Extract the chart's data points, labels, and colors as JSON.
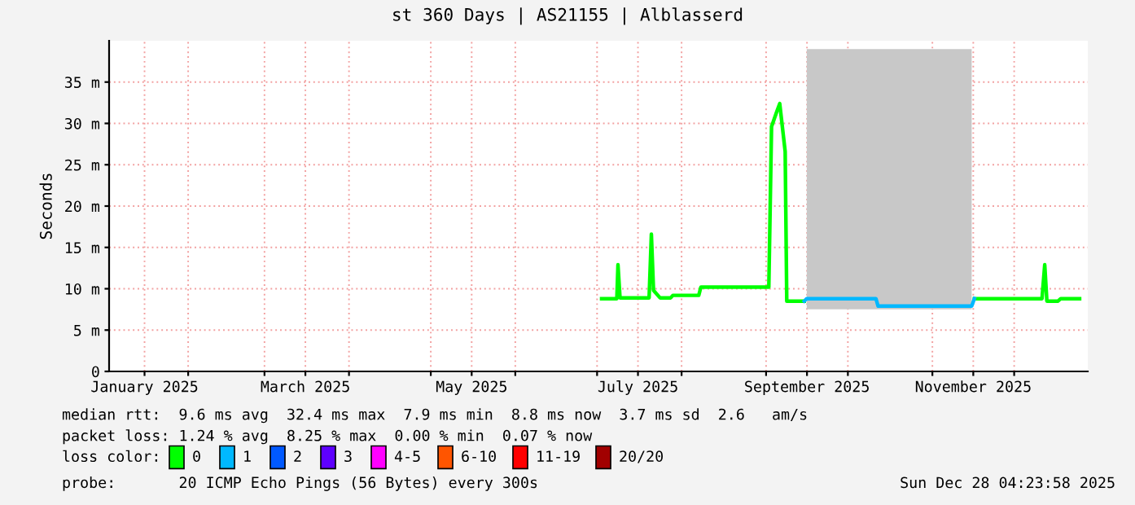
{
  "chart_data": {
    "type": "line",
    "title": "st 360 Days | AS21155 | Alblasserd",
    "ylabel": "Seconds",
    "xlim": [
      "2025-01-03",
      "2025-12-28"
    ],
    "xticks": [
      {
        "value": "2025-02-01",
        "label": null
      },
      {
        "value": "2025-03-01",
        "label": null
      },
      {
        "value": "2025-04-01",
        "label": null
      },
      {
        "value": "2025-05-01",
        "label": null
      },
      {
        "value": "2025-06-01",
        "label": null
      },
      {
        "value": "2025-07-01",
        "label": null
      },
      {
        "value": "2025-08-01",
        "label": null
      },
      {
        "value": "2025-09-01",
        "label": null
      },
      {
        "value": "2025-10-01",
        "label": null
      },
      {
        "value": "2025-11-01",
        "label": null
      },
      {
        "value": "2025-12-01",
        "label": null
      },
      {
        "value": "2025-01-16",
        "label": "January 2025"
      },
      {
        "value": "2025-03-16",
        "label": "March 2025"
      },
      {
        "value": "2025-05-16",
        "label": "May 2025"
      },
      {
        "value": "2025-07-16",
        "label": "July 2025"
      },
      {
        "value": "2025-09-16",
        "label": "September 2025"
      },
      {
        "value": "2025-11-16",
        "label": "November 2025"
      }
    ],
    "ylim": [
      0,
      40
    ],
    "yticks": [
      0,
      {
        "value": 5,
        "label": "5 m"
      },
      {
        "value": 10,
        "label": "10 m"
      },
      {
        "value": 15,
        "label": "15 m"
      },
      {
        "value": 20,
        "label": "20 m"
      },
      {
        "value": 25,
        "label": "25 m"
      },
      {
        "value": 30,
        "label": "30 m"
      },
      {
        "value": 35,
        "label": "35 m"
      }
    ],
    "grid": true,
    "legend": "bottom",
    "legend_title": "loss color:",
    "series": [
      {
        "name": "0",
        "color": "#00ff00",
        "x": [
          "2025-07-02T16:00",
          "2025-07-08T06:00",
          "2025-07-08T16:00",
          "2025-07-09T10:00",
          "2025-07-20T02:00",
          "2025-07-20T22:00",
          "2025-07-21T17:00",
          "2025-07-24T02:00",
          "2025-07-28T00:00",
          "2025-07-28T19:00",
          "2025-08-07T07:00",
          "2025-08-08T02:00",
          "2025-09-02",
          "2025-09-03",
          "2025-09-05",
          "2025-09-06",
          "2025-09-08",
          "2025-09-08T14:00",
          "2025-09-15",
          "2025-09-15T22:00",
          "2025-10-11T07:00",
          "2025-10-12T02:00",
          "2025-11-15T10:00",
          "2025-11-16T10:00",
          "2025-12-11T05:00",
          "2025-12-12T05:00",
          "2025-12-13",
          "2025-12-17T02:00",
          "2025-12-18T02:00",
          "2025-12-25"
        ],
        "values": [
          8.8,
          8.8,
          12.9,
          8.9,
          8.9,
          16.6,
          9.8,
          8.9,
          8.9,
          9.2,
          9.2,
          10.2,
          10.2,
          29.6,
          31.5,
          32.4,
          26.6,
          8.5,
          8.5,
          null,
          null,
          null,
          null,
          8.8,
          8.8,
          12.9,
          8.5,
          8.5,
          8.8,
          8.8
        ]
      },
      {
        "name": "1",
        "color": "#00b8ff",
        "x": [
          "2025-09-15",
          "2025-09-15T22:00",
          "2025-10-11T07:00",
          "2025-10-12T02:00",
          "2025-11-15T10:00",
          "2025-11-16T10:00"
        ],
        "values": [
          8.5,
          8.8,
          8.8,
          7.9,
          7.9,
          8.8
        ],
        "lower": [
          null,
          7.5,
          7.5,
          7.5,
          7.5,
          null
        ],
        "upper": [
          null,
          39,
          39,
          39,
          39,
          null
        ]
      },
      {
        "name": "2",
        "color": "#0059ff"
      },
      {
        "name": "3",
        "color": "#5e00ff"
      },
      {
        "name": "4-5",
        "color": "#ff00ff"
      },
      {
        "name": "6-10",
        "color": "#ff5500"
      },
      {
        "name": "11-19",
        "color": "#ff0000"
      },
      {
        "name": "20/20",
        "color": "#a10000"
      }
    ],
    "annotations": [
      "median rtt:  9.6 ms avg  32.4 ms max  7.9 ms min  8.8 ms now  3.7 ms sd  2.6   am/s",
      "packet loss: 1.24 % avg  8.25 % max  0.00 % min  0.07 % now",
      "probe:       20 ICMP Echo Pings (56 Bytes) every 300s",
      "Sun Dec 28 04:23:58 2025"
    ]
  }
}
